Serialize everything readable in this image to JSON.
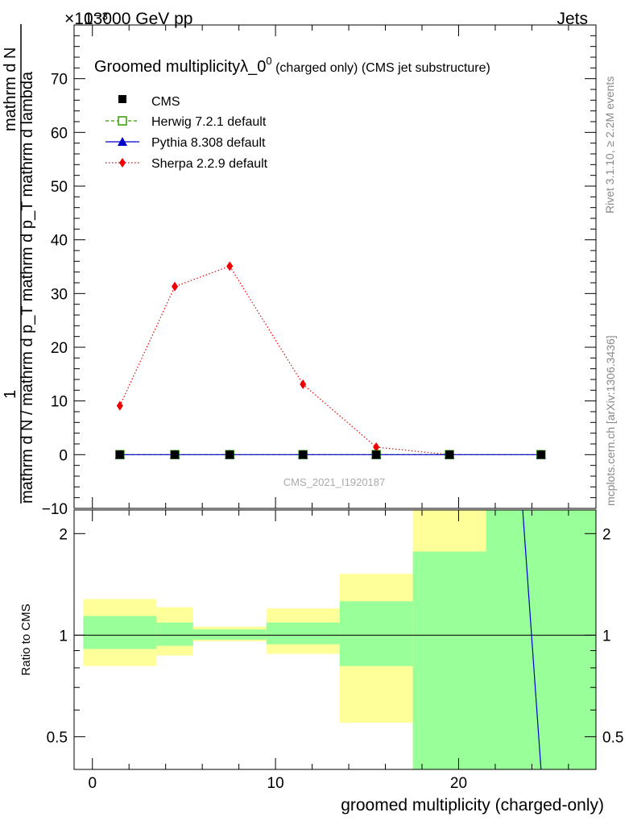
{
  "header": {
    "energy_label": "13000 GeV pp",
    "category_label": "Jets",
    "exponent_label": "×10⁻³"
  },
  "side_labels": {
    "rivet": "Rivet 3.1.10, ≥ 2.2M events",
    "mcplots": "mcplots.cern.ch [arXiv:1306.3436]"
  },
  "watermark": "CMS_2021_I1920187",
  "chart_data": [
    {
      "type": "line",
      "title": "Groomed multiplicityλ_0⁰ (charged only) (CMS jet substructure)",
      "title_main": "Groomed multiplicityλ_0",
      "title_sup": "0",
      "title_rest": " (charged only) (CMS jet substructure)",
      "ylabel_numerator": "1",
      "ylabel_full": "mathrm d N / mathrm d p_T mathrm d p_T mathrm d lambda · 1 / mathrm d N",
      "ylabel_line1": "mathrm d N / mathrm d p_T mathrm d p_T mathrm d lambda",
      "ylabel_line2": "mathrm d N",
      "y_scale": "x 10^-3",
      "xlim": [
        -1,
        27.5
      ],
      "ylim": [
        -10,
        80
      ],
      "yticks": [
        -10,
        0,
        10,
        20,
        30,
        40,
        50,
        60,
        70
      ],
      "ytick_labels": [
        "−10",
        "0",
        "10",
        "20",
        "30",
        "40",
        "50",
        "60",
        "70"
      ],
      "legend_position": "top-left",
      "series": [
        {
          "name": "CMS",
          "color": "#000000",
          "marker": "square",
          "x": [
            1.5,
            4.5,
            7.5,
            11.5,
            15.5,
            19.5,
            24.5
          ],
          "y": [
            0,
            0,
            0,
            0,
            0,
            0,
            0
          ]
        },
        {
          "name": "Herwig 7.2.1 default",
          "color": "#339900",
          "marker": "open-square",
          "line": "dashed",
          "x": [
            1.5,
            4.5,
            7.5,
            11.5,
            15.5,
            19.5,
            24.5
          ],
          "y": [
            0,
            0,
            0,
            0,
            0,
            0,
            0
          ]
        },
        {
          "name": "Pythia 8.308 default",
          "color": "#0000cc",
          "marker": "triangle",
          "line": "solid",
          "x": [
            1.5,
            4.5,
            7.5,
            11.5,
            15.5,
            19.5,
            24.5
          ],
          "y": [
            0,
            0,
            0,
            0,
            0,
            0,
            0
          ]
        },
        {
          "name": "Sherpa 2.2.9 default",
          "color": "#ee0000",
          "marker": "diamond",
          "line": "dotted",
          "x": [
            1.5,
            4.5,
            7.5,
            11.5,
            15.5,
            19.5
          ],
          "y": [
            9.1,
            31.3,
            35.1,
            13.1,
            1.4,
            0
          ]
        }
      ]
    },
    {
      "type": "area",
      "ylabel": "Ratio to CMS",
      "xlabel": "groomed multiplicity (charged-only)",
      "y_scale": "log",
      "xlim": [
        -1,
        27.5
      ],
      "ylim": [
        0.4,
        2.35
      ],
      "xticks": [
        0,
        10,
        20
      ],
      "xtick_labels": [
        "0",
        "10",
        "20"
      ],
      "yticks": [
        0.5,
        1,
        2
      ],
      "ytick_labels": [
        "0.5",
        "1",
        "2"
      ],
      "reference_line": 1,
      "bins": [
        {
          "lo": -0.5,
          "hi": 3.5,
          "yellow": [
            0.81,
            1.28
          ],
          "green": [
            0.91,
            1.14
          ]
        },
        {
          "lo": 3.5,
          "hi": 5.5,
          "yellow": [
            0.87,
            1.21
          ],
          "green": [
            0.93,
            1.09
          ]
        },
        {
          "lo": 5.5,
          "hi": 9.5,
          "yellow": [
            0.96,
            1.06
          ],
          "green": [
            0.97,
            1.04
          ]
        },
        {
          "lo": 9.5,
          "hi": 13.5,
          "yellow": [
            0.88,
            1.2
          ],
          "green": [
            0.94,
            1.09
          ]
        },
        {
          "lo": 13.5,
          "hi": 17.5,
          "yellow": [
            0.55,
            1.52
          ],
          "green": [
            0.81,
            1.26
          ]
        },
        {
          "lo": 17.5,
          "hi": 21.5,
          "yellow": [
            0.35,
            2.5
          ],
          "green": [
            0.35,
            1.77
          ]
        },
        {
          "lo": 21.5,
          "hi": 27.5,
          "yellow": [
            0.35,
            2.5
          ],
          "green": [
            0.35,
            2.5
          ]
        }
      ],
      "pythia_ratio_line": {
        "x": [
          23.5,
          24.5
        ],
        "y": [
          2.35,
          0.4
        ],
        "color": "#0000cc"
      }
    }
  ]
}
